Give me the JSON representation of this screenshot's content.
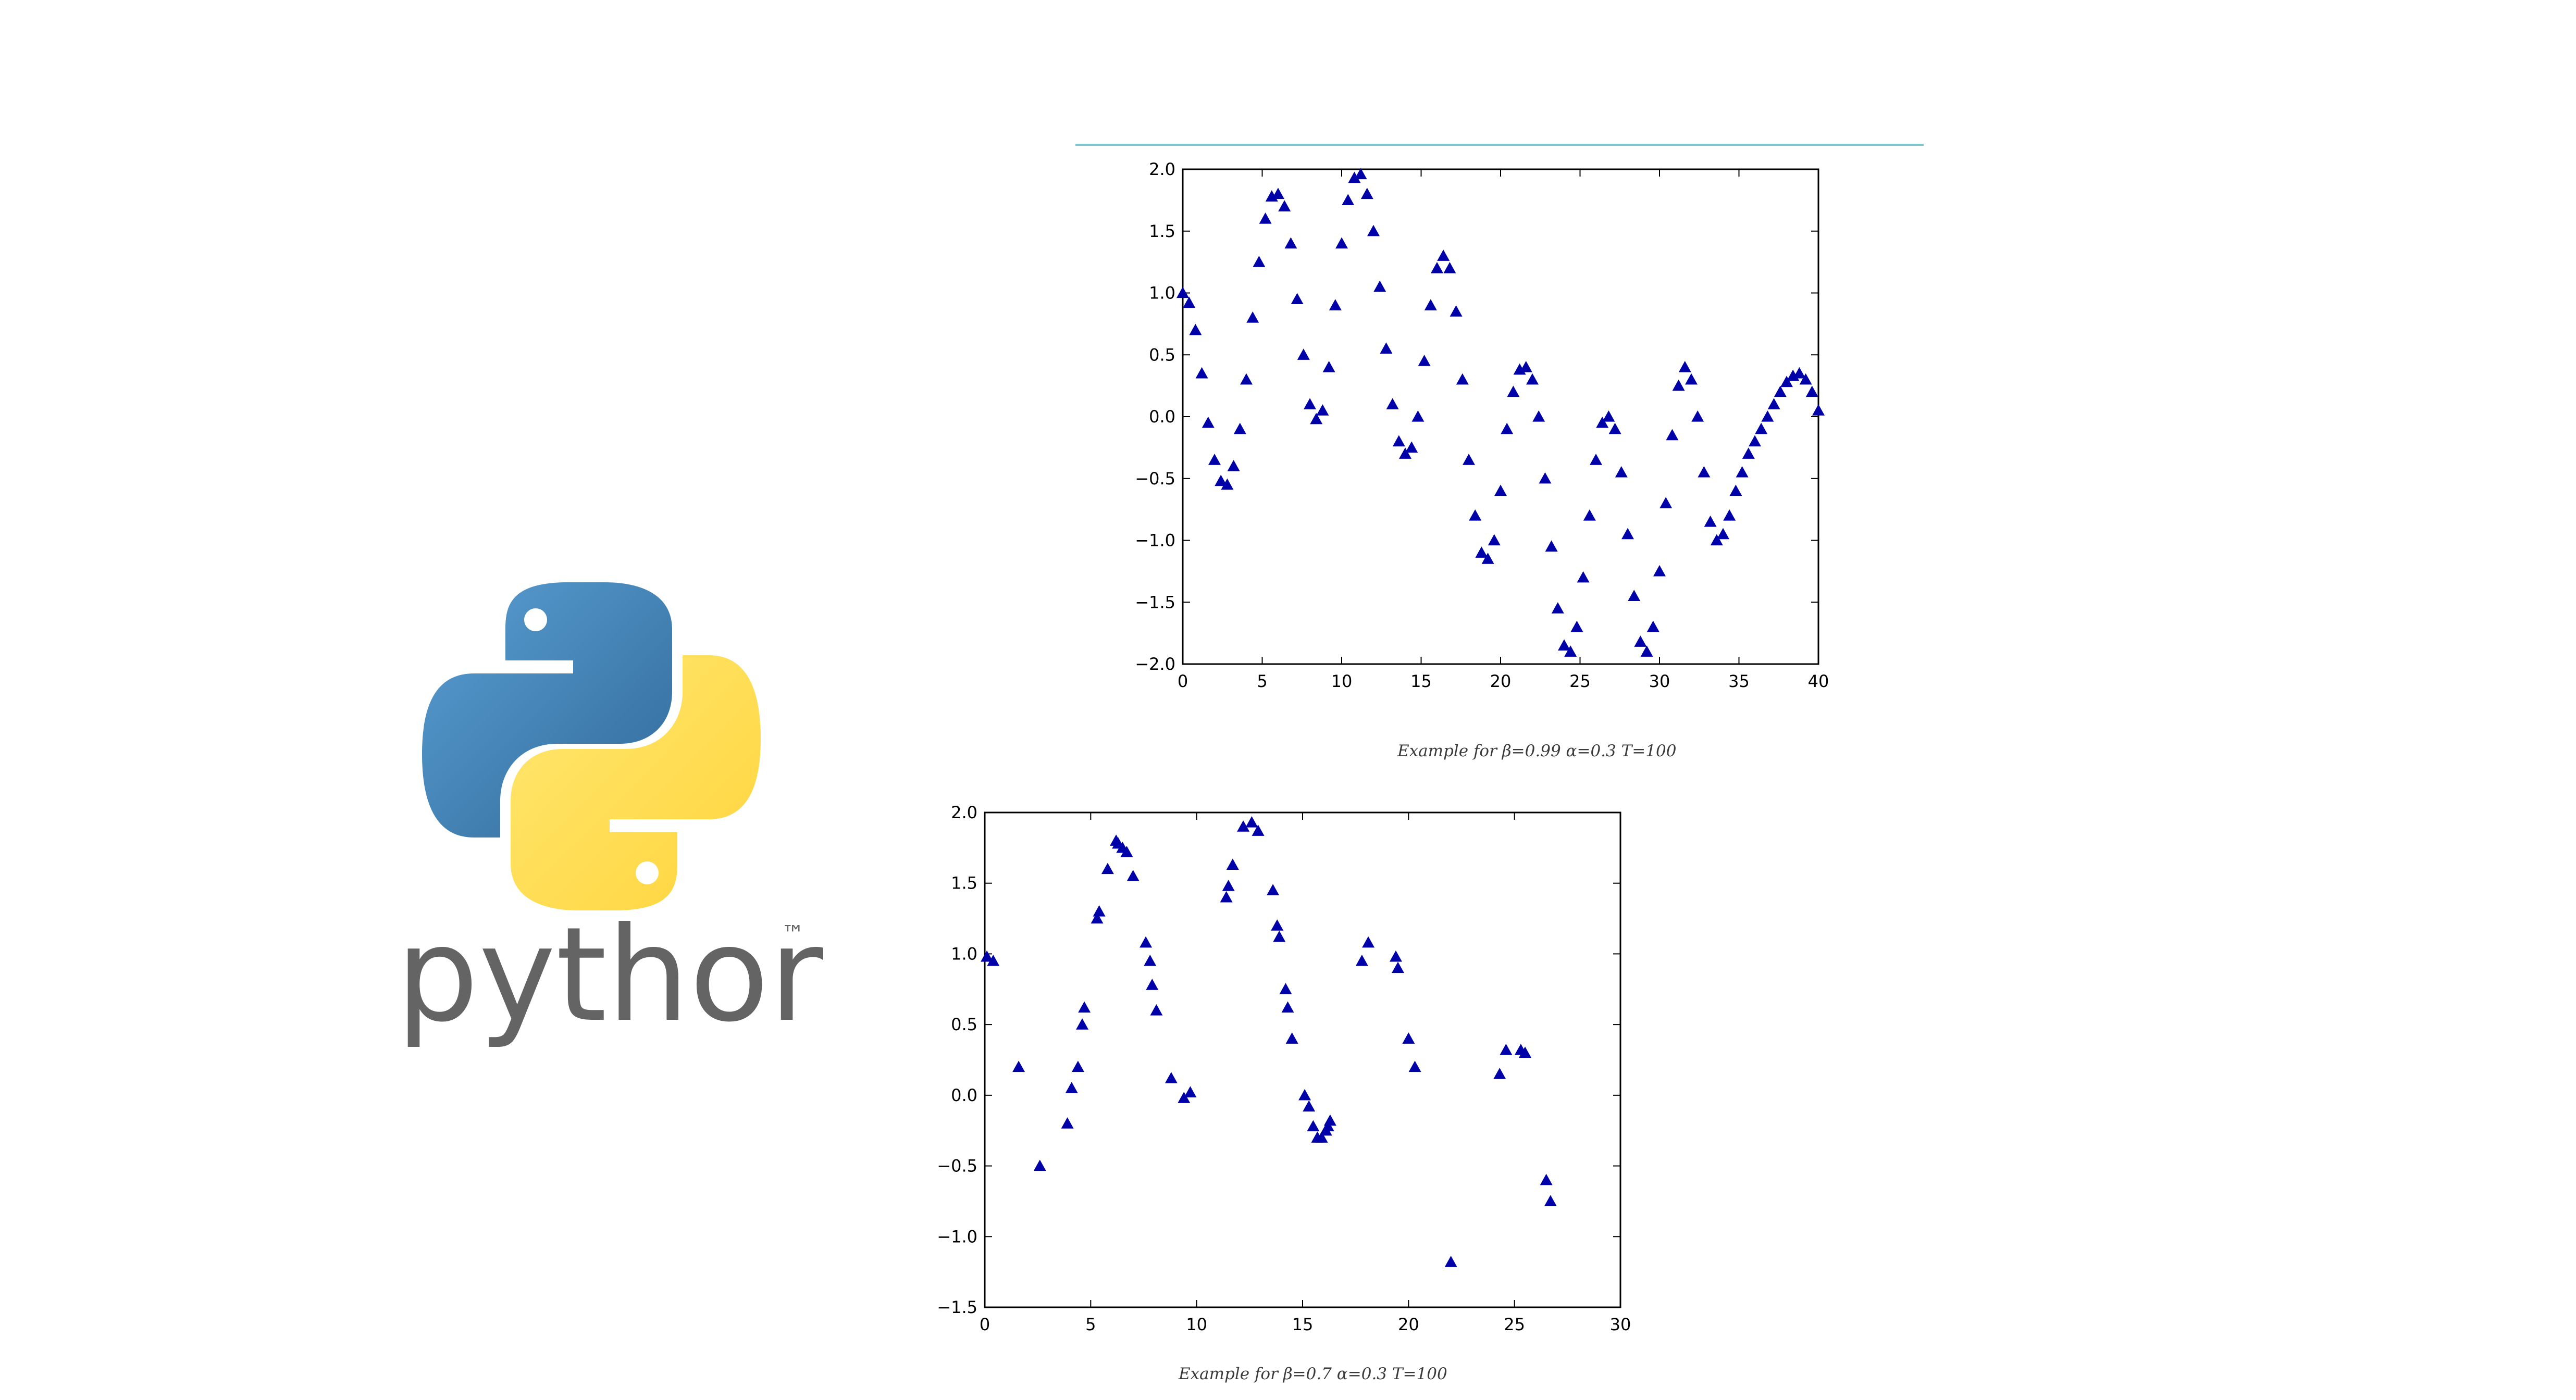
{
  "captions": {
    "top": "Example for β=0.99  α=0.3  T=100",
    "bottom": "Example for β=0.7  α=0.3  T=100"
  },
  "logo": {
    "wordmark": "python",
    "tm": "™"
  },
  "colors": {
    "marker": "#0000a8",
    "accent_rule": "#7ec8cb",
    "logo_blue": "#3d78aa",
    "logo_yellow": "#ffd43b",
    "logo_text": "#646464"
  },
  "chart_data": [
    {
      "type": "scatter",
      "marker": "triangle",
      "xlim": [
        0,
        40
      ],
      "ylim": [
        -2.0,
        2.0
      ],
      "xticks": [
        "0",
        "5",
        "10",
        "15",
        "20",
        "25",
        "30",
        "35",
        "40"
      ],
      "yticks": [
        "−2.0",
        "−1.5",
        "−1.0",
        "−0.5",
        "0.0",
        "0.5",
        "1.0",
        "1.5",
        "2.0"
      ],
      "xtick_values": [
        0,
        5,
        10,
        15,
        20,
        25,
        30,
        35,
        40
      ],
      "ytick_values": [
        -2.0,
        -1.5,
        -1.0,
        -0.5,
        0.0,
        0.5,
        1.0,
        1.5,
        2.0
      ],
      "x": [
        0,
        0.4,
        0.8,
        1.2,
        1.6,
        2.0,
        2.4,
        2.8,
        3.2,
        3.6,
        4.0,
        4.4,
        4.8,
        5.2,
        5.6,
        6.0,
        6.4,
        6.8,
        7.2,
        7.6,
        8.0,
        8.4,
        8.8,
        9.2,
        9.6,
        10.0,
        10.4,
        10.8,
        11.2,
        11.6,
        12.0,
        12.4,
        12.8,
        13.2,
        13.6,
        14.0,
        14.4,
        14.8,
        15.2,
        15.6,
        16.0,
        16.4,
        16.8,
        17.2,
        17.6,
        18.0,
        18.4,
        18.8,
        19.2,
        19.6,
        20.0,
        20.4,
        20.8,
        21.2,
        21.6,
        22.0,
        22.4,
        22.8,
        23.2,
        23.6,
        24.0,
        24.4,
        24.8,
        25.2,
        25.6,
        26.0,
        26.4,
        26.8,
        27.2,
        27.6,
        28.0,
        28.4,
        28.8,
        29.2,
        29.6,
        30.0,
        30.4,
        30.8,
        31.2,
        31.6,
        32.0,
        32.4,
        32.8,
        33.2,
        33.6,
        34.0,
        34.4,
        34.8,
        35.2,
        35.6,
        36.0,
        36.4,
        36.8,
        37.2,
        37.6,
        38.0,
        38.4,
        38.8,
        39.2,
        39.6,
        40.0
      ],
      "y": [
        1.0,
        0.92,
        0.7,
        0.35,
        -0.05,
        -0.35,
        -0.52,
        -0.55,
        -0.4,
        -0.1,
        0.3,
        0.8,
        1.25,
        1.6,
        1.78,
        1.8,
        1.7,
        1.4,
        0.95,
        0.5,
        0.1,
        -0.02,
        0.05,
        0.4,
        0.9,
        1.4,
        1.75,
        1.93,
        1.96,
        1.8,
        1.5,
        1.05,
        0.55,
        0.1,
        -0.2,
        -0.3,
        -0.25,
        0.0,
        0.45,
        0.9,
        1.2,
        1.3,
        1.2,
        0.85,
        0.3,
        -0.35,
        -0.8,
        -1.1,
        -1.15,
        -1.0,
        -0.6,
        -0.1,
        0.2,
        0.38,
        0.4,
        0.3,
        0.0,
        -0.5,
        -1.05,
        -1.55,
        -1.85,
        -1.9,
        -1.7,
        -1.3,
        -0.8,
        -0.35,
        -0.05,
        0.0,
        -0.1,
        -0.45,
        -0.95,
        -1.45,
        -1.82,
        -1.9,
        -1.7,
        -1.25,
        -0.7,
        -0.15,
        0.25,
        0.4,
        0.3,
        0.0,
        -0.45,
        -0.85,
        -1.0,
        -0.95,
        -0.8,
        -0.6,
        -0.45,
        -0.3,
        -0.2,
        -0.1,
        0.0,
        0.1,
        0.2,
        0.28,
        0.33,
        0.35,
        0.3,
        0.2,
        0.05
      ]
    },
    {
      "type": "scatter",
      "marker": "triangle",
      "xlim": [
        0,
        30
      ],
      "ylim": [
        -1.5,
        2.0
      ],
      "xticks": [
        "0",
        "5",
        "10",
        "15",
        "20",
        "25",
        "30"
      ],
      "yticks": [
        "−1.5",
        "−1.0",
        "−0.5",
        "0.0",
        "0.5",
        "1.0",
        "1.5",
        "2.0"
      ],
      "xtick_values": [
        0,
        5,
        10,
        15,
        20,
        25,
        30
      ],
      "ytick_values": [
        -1.5,
        -1.0,
        -0.5,
        0.0,
        0.5,
        1.0,
        1.5,
        2.0
      ],
      "x": [
        0.1,
        0.4,
        1.6,
        2.6,
        3.9,
        4.1,
        4.4,
        4.6,
        4.7,
        5.3,
        5.4,
        5.8,
        6.2,
        6.3,
        6.5,
        6.7,
        7.0,
        7.6,
        7.8,
        7.9,
        8.1,
        8.8,
        9.4,
        9.7,
        11.4,
        11.5,
        11.7,
        12.2,
        12.6,
        12.9,
        13.6,
        13.8,
        13.9,
        14.2,
        14.3,
        14.5,
        15.1,
        15.3,
        15.5,
        15.7,
        15.9,
        16.1,
        16.2,
        16.3,
        17.8,
        18.1,
        19.4,
        19.5,
        20.0,
        20.3,
        22.0,
        24.3,
        24.6,
        25.3,
        25.5,
        26.5,
        26.7
      ],
      "y": [
        0.98,
        0.95,
        0.2,
        -0.5,
        -0.2,
        0.05,
        0.2,
        0.5,
        0.62,
        1.25,
        1.3,
        1.6,
        1.8,
        1.78,
        1.75,
        1.72,
        1.55,
        1.08,
        0.95,
        0.78,
        0.6,
        0.12,
        -0.02,
        0.02,
        1.4,
        1.48,
        1.63,
        1.9,
        1.93,
        1.87,
        1.45,
        1.2,
        1.12,
        0.75,
        0.62,
        0.4,
        0.0,
        -0.08,
        -0.22,
        -0.3,
        -0.3,
        -0.25,
        -0.22,
        -0.18,
        0.95,
        1.08,
        0.98,
        0.9,
        0.4,
        0.2,
        -1.18,
        0.15,
        0.32,
        0.32,
        0.3,
        -0.6,
        -0.75
      ]
    }
  ]
}
